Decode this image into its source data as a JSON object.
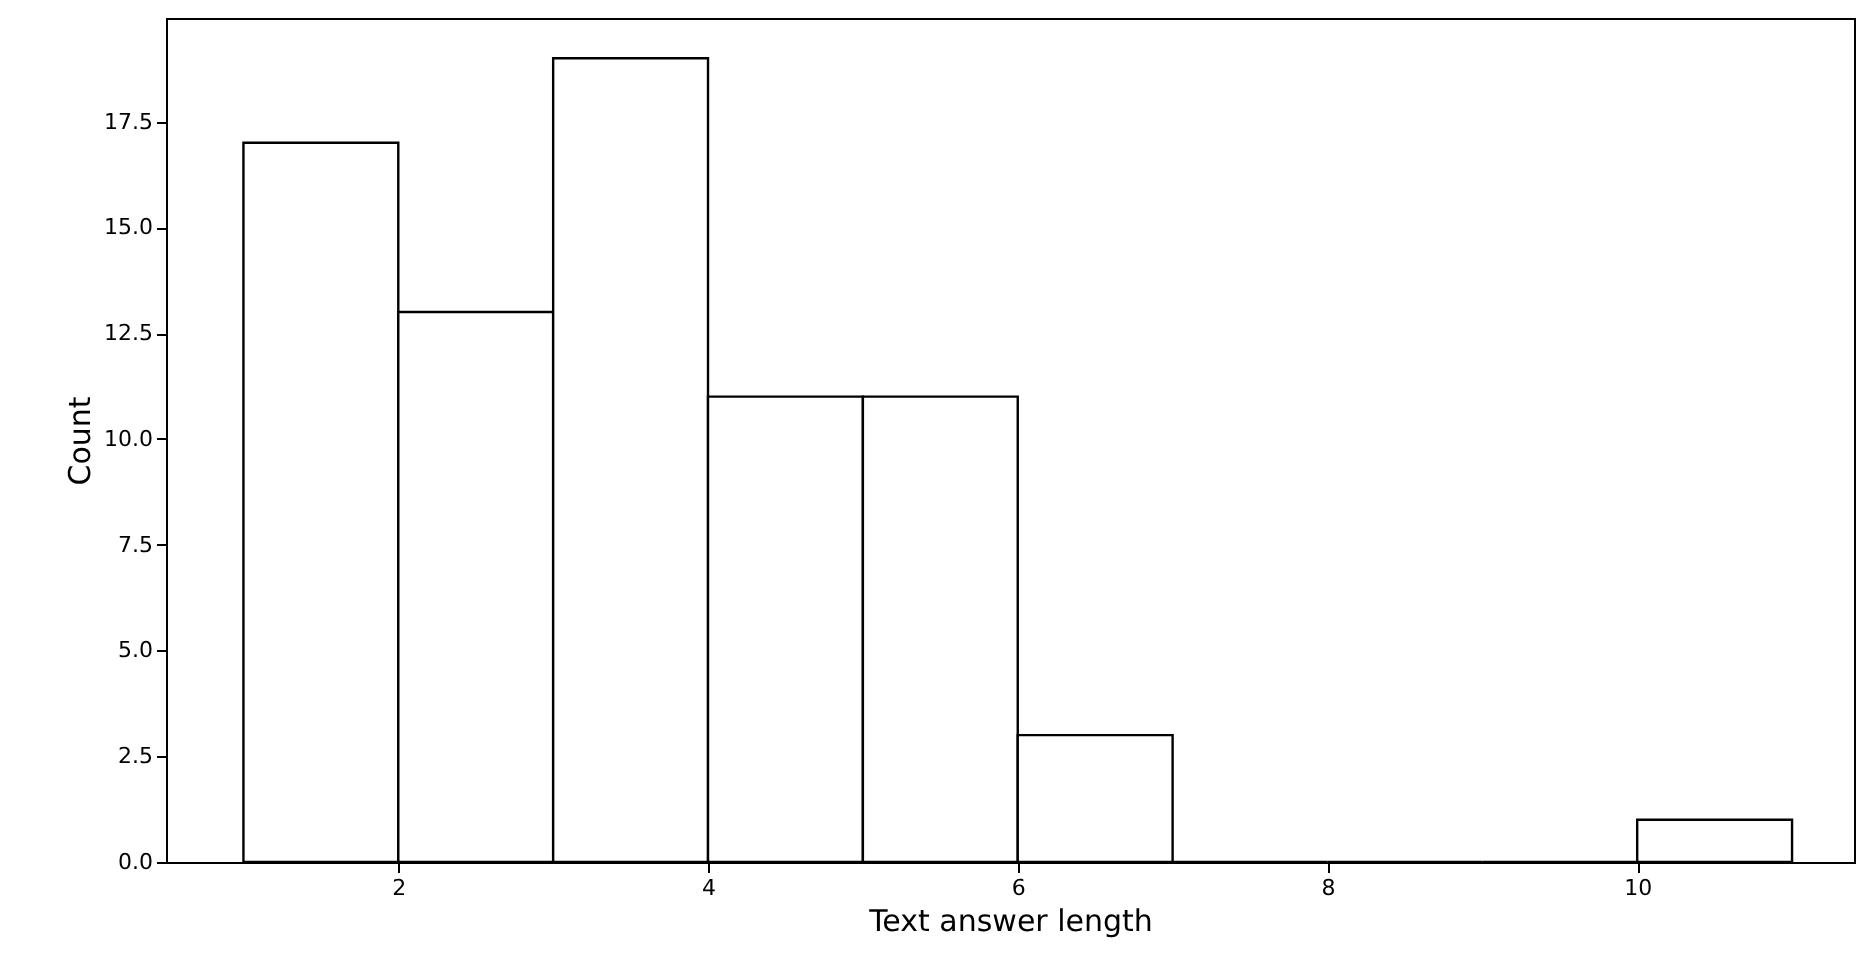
{
  "chart_data": {
    "type": "histogram",
    "xlabel": "Text answer length",
    "ylabel": "Count",
    "bins": [
      1,
      2,
      3,
      4,
      5,
      6,
      7,
      8,
      9,
      10,
      11
    ],
    "values": [
      17,
      13,
      19,
      11,
      11,
      3,
      0,
      0,
      0,
      1
    ],
    "color": "#ffffff",
    "xlim": [
      0.5,
      11.4
    ],
    "xticks": [
      2,
      4,
      6,
      8,
      10
    ],
    "ylim": [
      0,
      19.95
    ],
    "yticks": [
      {
        "value": 0,
        "label": "0.0"
      },
      2.5,
      {
        "value": 5,
        "label": "5.0"
      },
      7.5,
      {
        "value": 10,
        "label": "10.0"
      },
      12.5,
      {
        "value": 15,
        "label": "15.0"
      },
      17.5
    ],
    "grid": false
  }
}
